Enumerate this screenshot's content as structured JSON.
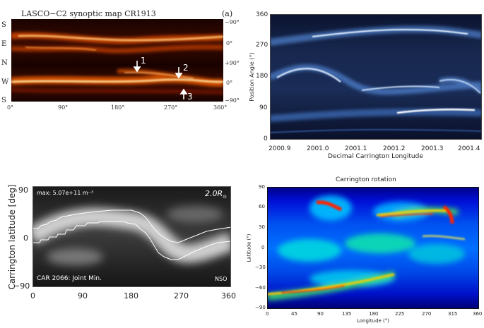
{
  "panel_a": {
    "title": "LASCO−C2 synoptic map CR1913",
    "panel_label": "(a)",
    "left_labels": [
      "S",
      "E",
      "N",
      "W",
      "S"
    ],
    "right_labels": [
      "−90°",
      "0°",
      "+90°",
      "0°",
      "−90°"
    ],
    "x_ticks": [
      "0°",
      "90°",
      "180°",
      "270°",
      "360°"
    ],
    "arrow_labels": [
      "1",
      "2",
      "3"
    ]
  },
  "panel_b": {
    "y_label": "Position Angle (°)",
    "x_label": "Decimal Carrington Longitude",
    "y_ticks": [
      "0",
      "90",
      "180",
      "270",
      "360"
    ],
    "x_ticks": [
      "2000.9",
      "2001.0",
      "2001.1",
      "2001.2",
      "2001.3",
      "2001.4"
    ]
  },
  "panel_c": {
    "y_label": "Carrington latitude [deg]",
    "y_ticks": [
      "90",
      "0",
      "−90"
    ],
    "x_ticks": [
      "0",
      "90",
      "180",
      "270",
      "360"
    ],
    "max_label": "max: 5.07e+11 m⁻³",
    "radius_label": "2.0R",
    "radius_sub": "⊙",
    "car_label": "CAR 2066: Joint Min.",
    "nso_label": "NSO"
  },
  "panel_d": {
    "title": "Carrington rotation",
    "y_label": "Latitude (°)",
    "x_label": "Longitude (°)",
    "y_ticks": [
      "90",
      "60",
      "30",
      "0",
      "−30",
      "−60",
      "−90"
    ],
    "x_ticks": [
      "0",
      "45",
      "90",
      "135",
      "180",
      "225",
      "270",
      "315",
      "360"
    ]
  },
  "colors": {
    "hot_dark": "#2a0700",
    "hot_bright": "#ffd080",
    "blue_dark": "#0a1030",
    "blue_bright": "#e8f4ff",
    "jet_blue": "#0000c8",
    "jet_red": "#d00000"
  }
}
